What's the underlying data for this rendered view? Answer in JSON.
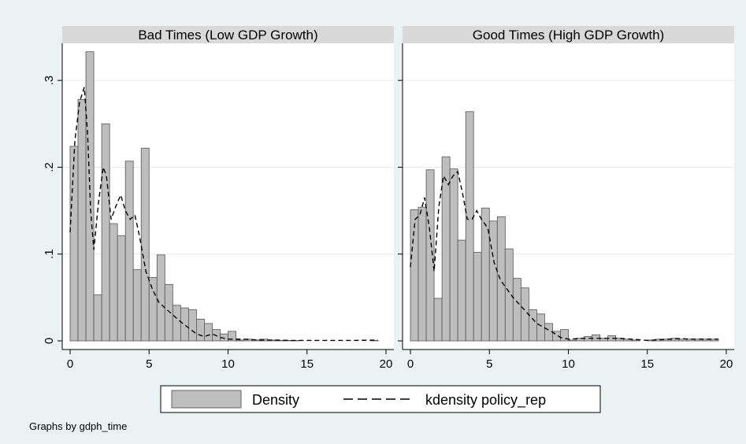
{
  "note": "Graphs by gdph_time",
  "legend": {
    "position": "bottom",
    "items": [
      {
        "label": "Density",
        "kind": "bar",
        "fill": "#bebebe",
        "stroke": "#666666"
      },
      {
        "label": "kdensity policy_rep",
        "kind": "dashed-line",
        "stroke": "#000000"
      }
    ]
  },
  "chart_data": [
    {
      "type": "bar",
      "panel": "Bad Times (Low GDP Growth)",
      "title": "Bad Times (Low GDP Growth)",
      "xlim": [
        0,
        20
      ],
      "ylim": [
        0,
        0.34
      ],
      "x_ticks": [
        0,
        5,
        10,
        15,
        20
      ],
      "y_ticks": [
        0,
        0.1,
        0.2,
        0.3
      ],
      "y_tick_labels": [
        "0",
        ".1",
        ".2",
        ".3"
      ],
      "bin_width": 0.5,
      "bin_start": 0,
      "grid": true,
      "series": [
        {
          "name": "Density",
          "type": "histogram",
          "values": [
            0.224,
            0.278,
            0.333,
            0.053,
            0.25,
            0.135,
            0.121,
            0.207,
            0.082,
            0.222,
            0.073,
            0.099,
            0.065,
            0.041,
            0.038,
            0.036,
            0.025,
            0.02,
            0.013,
            0.008,
            0.011,
            0.001,
            0.002,
            0.001,
            0.002,
            0.001,
            0.0005,
            0.0005,
            0.0005,
            0,
            0,
            0,
            0,
            0,
            0,
            0,
            0,
            0,
            0.0005
          ]
        },
        {
          "name": "kdensity policy_rep",
          "type": "line",
          "x": [
            0,
            0.3,
            0.6,
            0.9,
            1.1,
            1.3,
            1.5,
            1.8,
            2.1,
            2.3,
            2.6,
            2.9,
            3.2,
            3.5,
            3.8,
            4.1,
            4.4,
            4.8,
            5.2,
            5.6,
            6.0,
            6.5,
            7.0,
            7.5,
            8.0,
            8.5,
            9.0,
            9.5,
            10,
            11,
            12,
            13,
            14,
            15,
            16,
            17,
            18,
            19,
            19.5
          ],
          "y": [
            0.125,
            0.23,
            0.275,
            0.292,
            0.24,
            0.15,
            0.105,
            0.16,
            0.2,
            0.19,
            0.14,
            0.155,
            0.168,
            0.15,
            0.14,
            0.145,
            0.12,
            0.08,
            0.06,
            0.045,
            0.038,
            0.03,
            0.022,
            0.015,
            0.008,
            0.005,
            0.008,
            0.004,
            0.002,
            0.002,
            0.001,
            0.001,
            0.0005,
            0.0005,
            0.0005,
            0.0005,
            0.0005,
            0.0008,
            0.0008
          ]
        }
      ]
    },
    {
      "type": "bar",
      "panel": "Good Times (High GDP Growth)",
      "title": "Good Times (High GDP Growth)",
      "xlim": [
        0,
        20
      ],
      "ylim": [
        0,
        0.34
      ],
      "x_ticks": [
        0,
        5,
        10,
        15,
        20
      ],
      "y_ticks": [
        0,
        0.1,
        0.2,
        0.3
      ],
      "y_tick_labels": [
        "0",
        ".1",
        ".2",
        ".3"
      ],
      "bin_width": 0.5,
      "bin_start": 0,
      "grid": true,
      "series": [
        {
          "name": "Density",
          "type": "histogram",
          "values": [
            0.151,
            0.154,
            0.197,
            0.049,
            0.212,
            0.198,
            0.116,
            0.264,
            0.102,
            0.153,
            0.138,
            0.143,
            0.106,
            0.072,
            0.061,
            0.036,
            0.031,
            0.02,
            0.011,
            0.013,
            0.001,
            0.003,
            0.005,
            0.007,
            0.003,
            0.006,
            0.003,
            0.002,
            0.001,
            0,
            0.001,
            0.002,
            0.002,
            0.003,
            0.002,
            0.002,
            0.002,
            0.002,
            0.002
          ]
        },
        {
          "name": "kdensity policy_rep",
          "type": "line",
          "x": [
            0,
            0.3,
            0.6,
            0.9,
            1.2,
            1.5,
            1.8,
            2.1,
            2.4,
            2.7,
            3.0,
            3.3,
            3.6,
            3.9,
            4.2,
            4.5,
            4.9,
            5.3,
            5.7,
            6.1,
            6.5,
            7.0,
            7.5,
            8.0,
            8.5,
            9.0,
            9.5,
            10,
            11,
            12,
            13,
            14,
            15,
            16,
            17,
            18,
            19,
            19.5
          ],
          "y": [
            0.085,
            0.14,
            0.145,
            0.165,
            0.13,
            0.08,
            0.155,
            0.19,
            0.18,
            0.19,
            0.195,
            0.17,
            0.14,
            0.14,
            0.15,
            0.14,
            0.13,
            0.09,
            0.07,
            0.06,
            0.05,
            0.04,
            0.03,
            0.02,
            0.015,
            0.01,
            0.004,
            0.002,
            0.003,
            0.003,
            0.003,
            0.002,
            0.0005,
            0.0015,
            0.0025,
            0.002,
            0.002,
            0.002
          ]
        }
      ]
    }
  ]
}
